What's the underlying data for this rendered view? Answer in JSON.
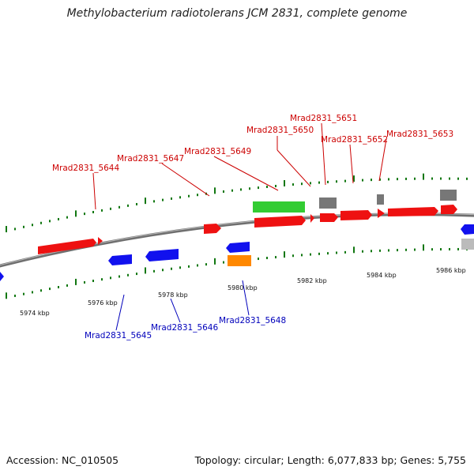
{
  "title": "Methylobacterium radiotolerans JCM 2831, complete genome",
  "footer": {
    "accession": "Accession: NC_010505",
    "summary": "Topology: circular; Length: 6,077,833 bp; Genes: 5,755"
  },
  "colors": {
    "forward_gene": "#ee1111",
    "reverse_gene": "#1111ee",
    "forward_label": "#cc0000",
    "reverse_label": "#0000bb",
    "rna_green": "#33cc33",
    "rna_orange": "#ff8800",
    "gray": "#777777",
    "tick_green": "#117711"
  },
  "scale": {
    "unit": "kbp",
    "labels": [
      "5974 kbp",
      "5976 kbp",
      "5978 kbp",
      "5980 kbp",
      "5982 kbp",
      "5984 kbp",
      "5986 kbp"
    ]
  },
  "forward_labels": [
    "Mrad2831_5644",
    "Mrad2831_5647",
    "Mrad2831_5649",
    "Mrad2831_5650",
    "Mrad2831_5651",
    "Mrad2831_5652",
    "Mrad2831_5653"
  ],
  "reverse_labels": [
    "Mrad2831_5645",
    "Mrad2831_5646",
    "Mrad2831_5648"
  ]
}
